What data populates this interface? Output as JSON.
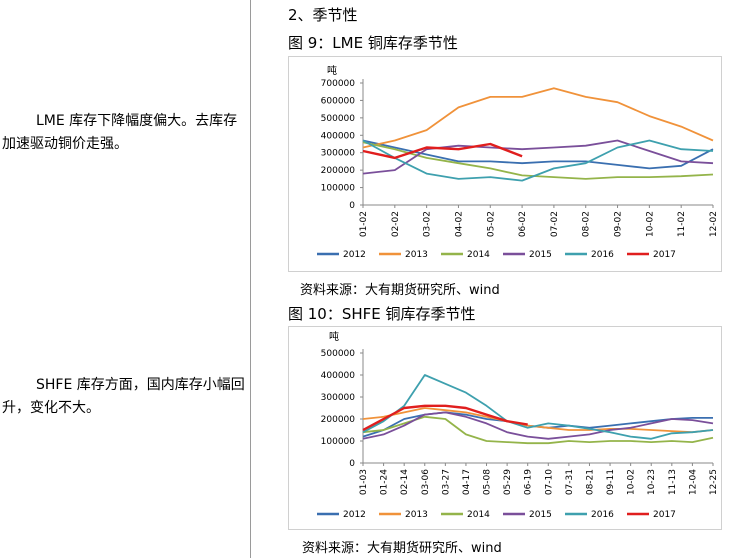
{
  "left": {
    "para1": "LME 库存下降幅度偏大。去库存加速驱动铜价走强。",
    "para2": "SHFE 库存方面，国内库存小幅回升，变化不大。"
  },
  "right": {
    "section_title": "2、季节性",
    "fig1_title": "图 9：LME 铜库存季节性",
    "fig2_title": "图 10：SHFE 铜库存季节性",
    "source1": "资料来源：大有期货研究所、wind",
    "source2": "资料来源：大有期货研究所、wind"
  },
  "colors": {
    "2012": "#3a6fb0",
    "2013": "#f0923a",
    "2014": "#94b44a",
    "2015": "#7a4f9a",
    "2016": "#3ea0ae",
    "2017": "#e01e1e"
  },
  "chart_data": [
    {
      "type": "line",
      "title": "",
      "ylabel": "吨",
      "ylim": [
        0,
        700000
      ],
      "yticks": [
        "0",
        "100000",
        "200000",
        "300000",
        "400000",
        "500000",
        "600000",
        "700000"
      ],
      "x": [
        "01-02",
        "02-02",
        "03-02",
        "04-02",
        "05-02",
        "06-02",
        "07-02",
        "08-02",
        "09-02",
        "10-02",
        "11-02",
        "12-02"
      ],
      "legend": "bottom",
      "series": [
        {
          "name": "2012",
          "values": [
            370000,
            330000,
            290000,
            250000,
            250000,
            240000,
            250000,
            250000,
            230000,
            210000,
            225000,
            320000
          ]
        },
        {
          "name": "2013",
          "values": [
            330000,
            370000,
            430000,
            560000,
            620000,
            620000,
            670000,
            620000,
            590000,
            510000,
            450000,
            370000
          ]
        },
        {
          "name": "2014",
          "values": [
            360000,
            320000,
            270000,
            240000,
            210000,
            170000,
            160000,
            150000,
            160000,
            160000,
            165000,
            175000
          ]
        },
        {
          "name": "2015",
          "values": [
            180000,
            200000,
            320000,
            340000,
            330000,
            320000,
            330000,
            340000,
            370000,
            310000,
            250000,
            240000
          ]
        },
        {
          "name": "2016",
          "values": [
            370000,
            270000,
            180000,
            150000,
            160000,
            140000,
            210000,
            240000,
            330000,
            370000,
            320000,
            310000
          ]
        },
        {
          "name": "2017",
          "values": [
            310000,
            270000,
            330000,
            320000,
            350000,
            280000,
            null,
            null,
            null,
            null,
            null,
            null
          ]
        }
      ]
    },
    {
      "type": "line",
      "title": "",
      "ylabel": "吨",
      "ylim": [
        0,
        500000
      ],
      "yticks": [
        "0",
        "100000",
        "200000",
        "300000",
        "400000",
        "500000"
      ],
      "x": [
        "01-03",
        "01-24",
        "02-14",
        "03-06",
        "03-27",
        "04-17",
        "05-08",
        "05-29",
        "06-19",
        "07-10",
        "07-31",
        "08-21",
        "09-11",
        "10-02",
        "10-23",
        "11-13",
        "12-04",
        "12-25"
      ],
      "legend": "bottom",
      "series": [
        {
          "name": "2012",
          "values": [
            120000,
            150000,
            200000,
            220000,
            230000,
            220000,
            200000,
            190000,
            170000,
            160000,
            170000,
            160000,
            170000,
            180000,
            190000,
            200000,
            205000,
            205000
          ]
        },
        {
          "name": "2013",
          "values": [
            200000,
            210000,
            230000,
            250000,
            240000,
            230000,
            210000,
            190000,
            170000,
            160000,
            150000,
            150000,
            155000,
            155000,
            150000,
            145000,
            140000,
            150000
          ]
        },
        {
          "name": "2014",
          "values": [
            140000,
            150000,
            180000,
            210000,
            200000,
            130000,
            100000,
            95000,
            90000,
            90000,
            100000,
            95000,
            100000,
            100000,
            95000,
            100000,
            95000,
            115000
          ]
        },
        {
          "name": "2015",
          "values": [
            110000,
            130000,
            170000,
            220000,
            230000,
            210000,
            180000,
            140000,
            120000,
            110000,
            120000,
            130000,
            150000,
            160000,
            180000,
            200000,
            195000,
            180000
          ]
        },
        {
          "name": "2016",
          "values": [
            140000,
            190000,
            260000,
            400000,
            360000,
            320000,
            260000,
            190000,
            160000,
            180000,
            170000,
            155000,
            140000,
            120000,
            110000,
            135000,
            140000,
            150000
          ]
        },
        {
          "name": "2017",
          "values": [
            150000,
            200000,
            250000,
            260000,
            260000,
            250000,
            220000,
            190000,
            175000,
            null,
            null,
            null,
            null,
            null,
            null,
            null,
            null,
            null
          ]
        }
      ]
    }
  ]
}
